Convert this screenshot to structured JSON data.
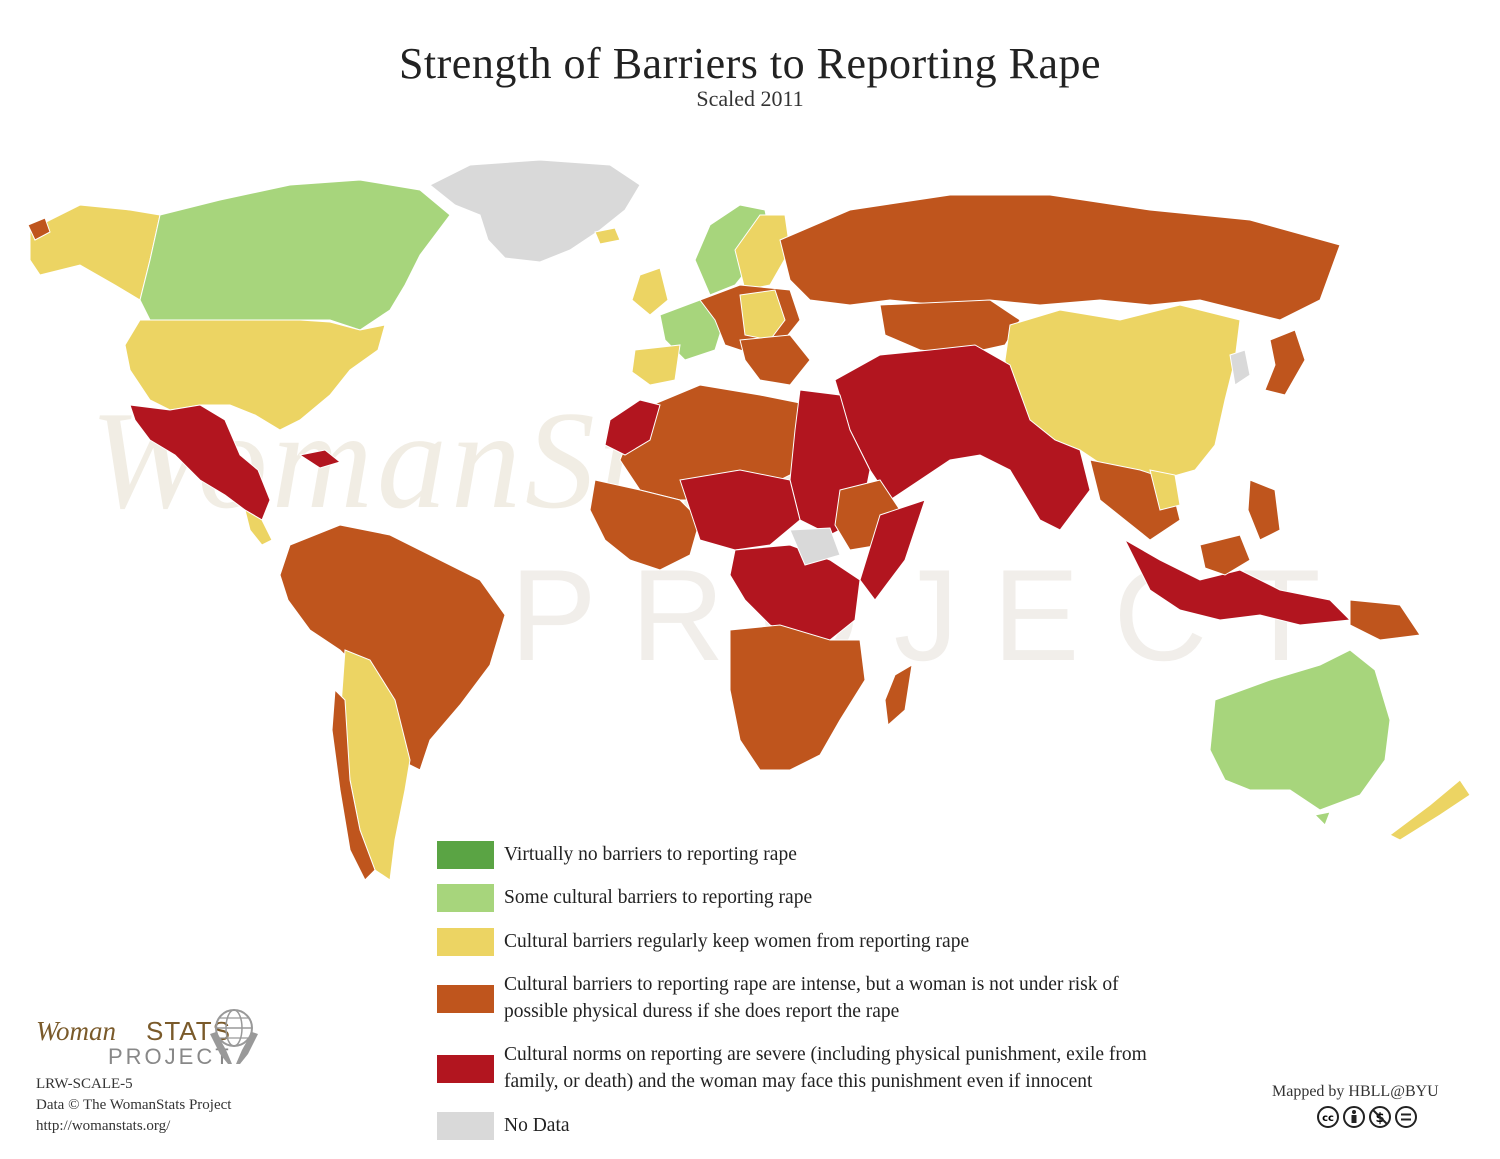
{
  "title": "Strength of Barriers to Reporting Rape",
  "subtitle": "Scaled 2011",
  "colors": {
    "virtually_none": "#5aa444",
    "some": "#a7d57c",
    "regular": "#ecd463",
    "intense": "#bf551d",
    "severe": "#b2151f",
    "no_data": "#d9d9d9",
    "ocean": "#ffffff"
  },
  "legend": [
    {
      "key": "virtually_none",
      "line1": "Virtually no barriers to reporting rape",
      "line2": ""
    },
    {
      "key": "some",
      "line1": "Some cultural barriers to reporting rape",
      "line2": ""
    },
    {
      "key": "regular",
      "line1": "Cultural barriers regularly keep women from reporting rape",
      "line2": ""
    },
    {
      "key": "intense",
      "line1": "Cultural barriers to reporting rape are intense, but a woman is not under risk of",
      "line2": "possible physical duress if she does report the rape"
    },
    {
      "key": "severe",
      "line1": "Cultural norms on reporting are severe (including physical punishment, exile from",
      "line2": "family, or death) and the woman may face this  punishment even if innocent"
    },
    {
      "key": "no_data",
      "line1": "No Data",
      "line2": ""
    }
  ],
  "logo": {
    "woman": "Woman",
    "stats": "STATS",
    "project": "PROJECT",
    "icon": "globe-hands-icon"
  },
  "watermark": {
    "top": "WomanStats",
    "bottom": "PROJECT"
  },
  "credits": {
    "code": "LRW-SCALE-5",
    "data": "Data © The WomanStats Project",
    "url": "http://womanstats.org/"
  },
  "mapped_by": "Mapped by HBLL@BYU",
  "license_icons": [
    "cc-icon",
    "by-icon",
    "nc-icon",
    "nd-icon"
  ]
}
